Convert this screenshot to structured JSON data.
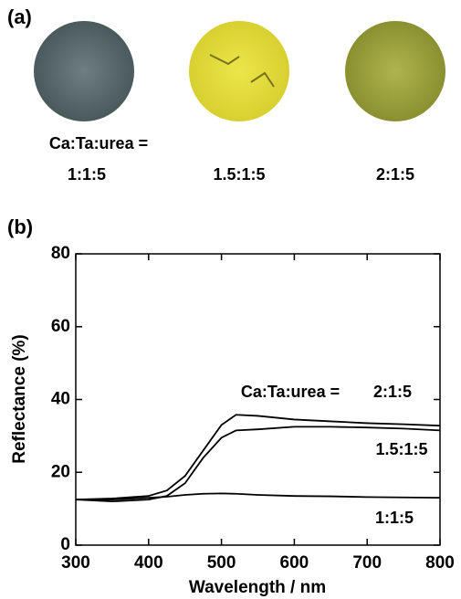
{
  "panel_a": {
    "label": "(a)",
    "prefix": "Ca:Ta:urea =",
    "samples": [
      "1:1:5",
      "1.5:1:5",
      "2:1:5"
    ]
  },
  "chart_data": {
    "type": "line",
    "panel_label": "(b)",
    "annotation": "Ca:Ta:urea =",
    "x_label": "Wavelength / nm",
    "y_label": "Reflectance (%)",
    "x": [
      300,
      350,
      400,
      425,
      450,
      475,
      500,
      520,
      550,
      600,
      650,
      700,
      750,
      800
    ],
    "series": [
      {
        "name": "2:1:5",
        "color": "#000000",
        "values": [
          12.5,
          12.8,
          13.5,
          15,
          19,
          26,
          33,
          35.8,
          35.5,
          34.5,
          34,
          33.5,
          33.2,
          32.8
        ]
      },
      {
        "name": "1.5:1:5",
        "color": "#000000",
        "values": [
          12.5,
          12,
          12.5,
          13.5,
          17,
          24,
          29.5,
          31.5,
          31.8,
          32.5,
          32.5,
          32.3,
          32,
          31.5
        ]
      },
      {
        "name": "1:1:5",
        "color": "#000000",
        "values": [
          12.5,
          12.5,
          13,
          13.3,
          13.8,
          14.1,
          14.2,
          14.1,
          13.8,
          13.5,
          13.4,
          13.2,
          13.1,
          13
        ]
      }
    ],
    "xlim": [
      300,
      800
    ],
    "xticks": [
      300,
      400,
      500,
      600,
      700,
      800
    ],
    "ylim": [
      0,
      80
    ],
    "yticks": [
      0,
      20,
      40,
      60,
      80
    ]
  }
}
